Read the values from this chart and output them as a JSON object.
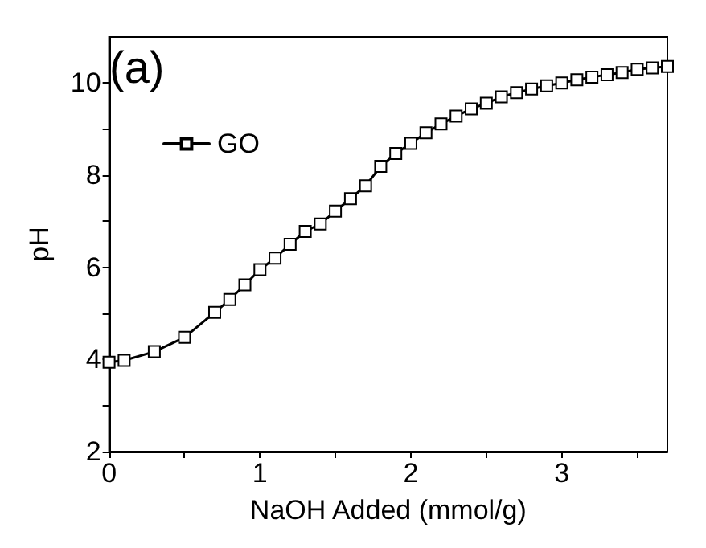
{
  "chart_data": {
    "type": "line",
    "xlabel": "NaOH Added (mmol/g)",
    "ylabel": "pH",
    "annotations": [
      "(a)"
    ],
    "x": [
      0,
      0.1,
      0.3,
      0.5,
      0.7,
      0.8,
      0.9,
      1.0,
      1.1,
      1.2,
      1.3,
      1.4,
      1.5,
      1.6,
      1.7,
      1.8,
      1.9,
      2.0,
      2.1,
      2.2,
      2.3,
      2.4,
      2.5,
      2.6,
      2.7,
      2.8,
      2.9,
      3.0,
      3.1,
      3.2,
      3.3,
      3.4,
      3.5,
      3.6,
      3.7
    ],
    "series": [
      {
        "name": "GO",
        "color": "#000000",
        "values": [
          3.94,
          3.98,
          4.17,
          4.48,
          5.02,
          5.3,
          5.62,
          5.95,
          6.2,
          6.5,
          6.78,
          6.94,
          7.22,
          7.49,
          7.77,
          8.19,
          8.47,
          8.69,
          8.92,
          9.11,
          9.28,
          9.44,
          9.56,
          9.7,
          9.79,
          9.87,
          9.94,
          10.0,
          10.07,
          10.13,
          10.18,
          10.23,
          10.3,
          10.33,
          10.36
        ]
      }
    ],
    "xlim": [
      0,
      3.7
    ],
    "ylim": [
      2,
      11
    ],
    "xticks": [
      0,
      {
        "value": 0.5,
        "label": null
      },
      1,
      {
        "value": 1.5,
        "label": null
      },
      2,
      {
        "value": 2.5,
        "label": null
      },
      3,
      {
        "value": 3.5,
        "label": null
      }
    ],
    "yticks": [
      2,
      {
        "value": 3,
        "label": null
      },
      4,
      {
        "value": 5,
        "label": null
      },
      6,
      {
        "value": 7,
        "label": null
      },
      8,
      {
        "value": 9,
        "label": null
      },
      10
    ],
    "grid": false,
    "legend": "top left",
    "marker": "square",
    "line_style": "solid"
  }
}
